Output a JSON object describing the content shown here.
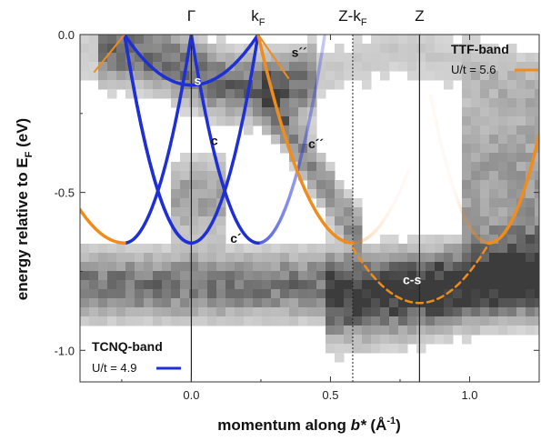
{
  "chart_data": {
    "type": "line",
    "xlabel": "momentum along b* (Å⁻¹)",
    "xlabel_parts": {
      "pre": "momentum along ",
      "bold_italic": "b*",
      "unit_open": " (Å",
      "unit_exp": "-1",
      "unit_close": ")"
    },
    "ylabel": "energy relative to E_F (eV)",
    "ylabel_parts": {
      "pre": "energy relative to E",
      "sub": "F",
      "post": " (eV)"
    },
    "xlim": [
      -0.4,
      1.25
    ],
    "ylim": [
      -1.1,
      0.0
    ],
    "x_ticks": [
      {
        "value": 0.0,
        "label": "0.0"
      },
      {
        "value": 0.5,
        "label": "0.5"
      },
      {
        "value": 1.0,
        "label": "1.0"
      }
    ],
    "y_ticks": [
      {
        "value": 0.0,
        "label": "0.0"
      },
      {
        "value": -0.5,
        "label": "-0.5"
      },
      {
        "value": -1.0,
        "label": "-1.0"
      }
    ],
    "grid": false,
    "markers": [
      {
        "label": "Γ",
        "x": 0.0,
        "style": "solid"
      },
      {
        "label": "k",
        "sub": "F",
        "x": 0.24,
        "style": "none"
      },
      {
        "label": "Z-k",
        "sub": "F",
        "x": 0.58,
        "style": "dotted"
      },
      {
        "label": "Z",
        "x": 0.82,
        "style": "solid"
      }
    ],
    "series": [
      {
        "name": "TCNQ-band",
        "color": "#1e2fd6",
        "params": "U/t = 4.9",
        "legend": "bottom-left"
      },
      {
        "name": "TTF-band",
        "color": "#f08c1c",
        "params": "U/t = 5.6",
        "legend": "top-right"
      }
    ],
    "band_labels": [
      {
        "text": "s",
        "x": 0.01,
        "y": -0.16,
        "color": "#ffffff"
      },
      {
        "text": "c",
        "x": 0.07,
        "y": -0.35,
        "color": "#111111"
      },
      {
        "text": "c´",
        "x": 0.14,
        "y": -0.66,
        "color": "#111111"
      },
      {
        "text": "s´´",
        "x": 0.36,
        "y": -0.07,
        "color": "#111111"
      },
      {
        "text": "c´´",
        "x": 0.42,
        "y": -0.36,
        "color": "#111111"
      },
      {
        "text": "c-s",
        "x": 0.76,
        "y": -0.79,
        "color": "#ffffff"
      }
    ]
  }
}
